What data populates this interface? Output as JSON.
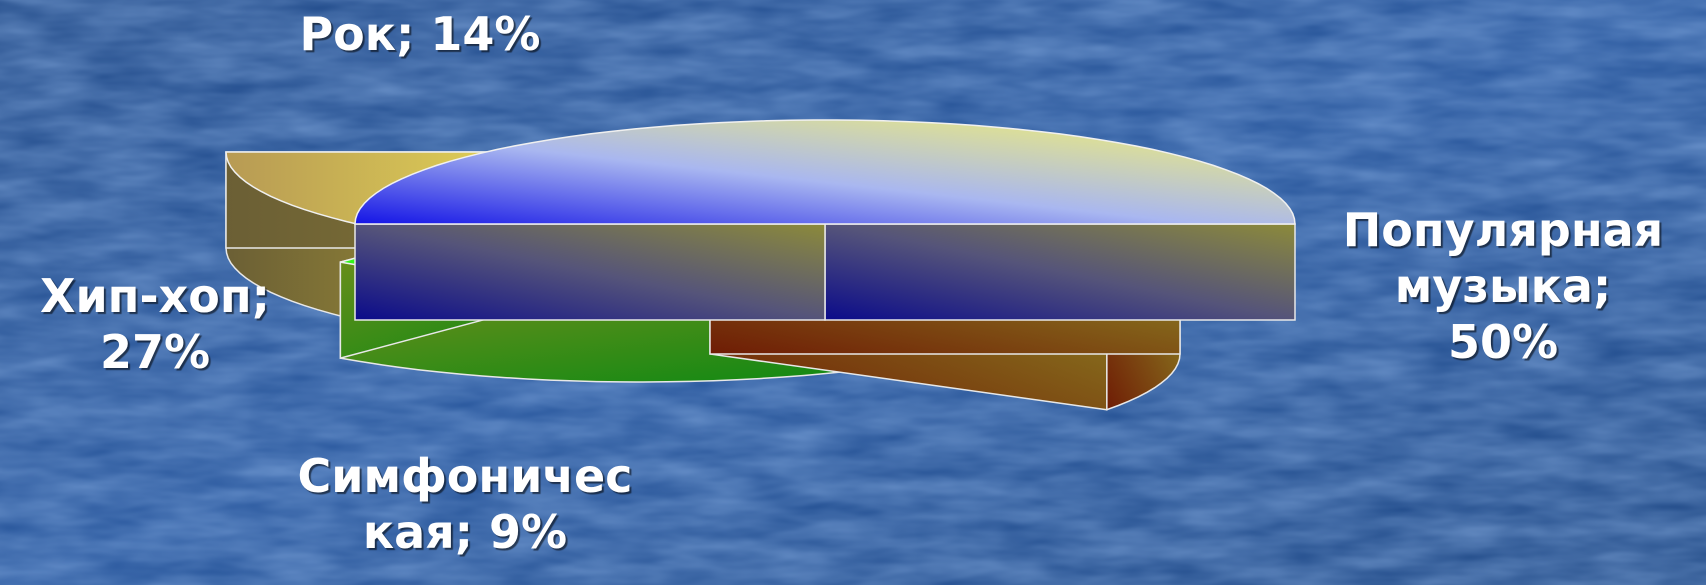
{
  "chart_data": {
    "type": "pie",
    "title": "",
    "slices": [
      {
        "label": "Популярная музыка",
        "value": 50,
        "display": [
          "Популярная",
          "музыка;",
          "50%"
        ],
        "color_light": "#f6f36b",
        "color_dark": "#1414e6"
      },
      {
        "label": "Рок",
        "value": 14,
        "display": [
          "Рок; 14%"
        ],
        "color_light": "#f7f268",
        "color_dark": "#8a6f2e"
      },
      {
        "label": "Хип-хоп",
        "value": 27,
        "display": [
          "Хип-хоп;",
          "27%"
        ],
        "color_light": "#f0ff2a",
        "color_dark": "#2fef1a"
      },
      {
        "label": "Симфоническая",
        "value": 9,
        "display": [
          "Симфоничес",
          "кая; 9%"
        ],
        "color_light": "#ffff1a",
        "color_dark": "#ff3c00"
      }
    ],
    "legend": "none",
    "data_labels": "outside"
  }
}
